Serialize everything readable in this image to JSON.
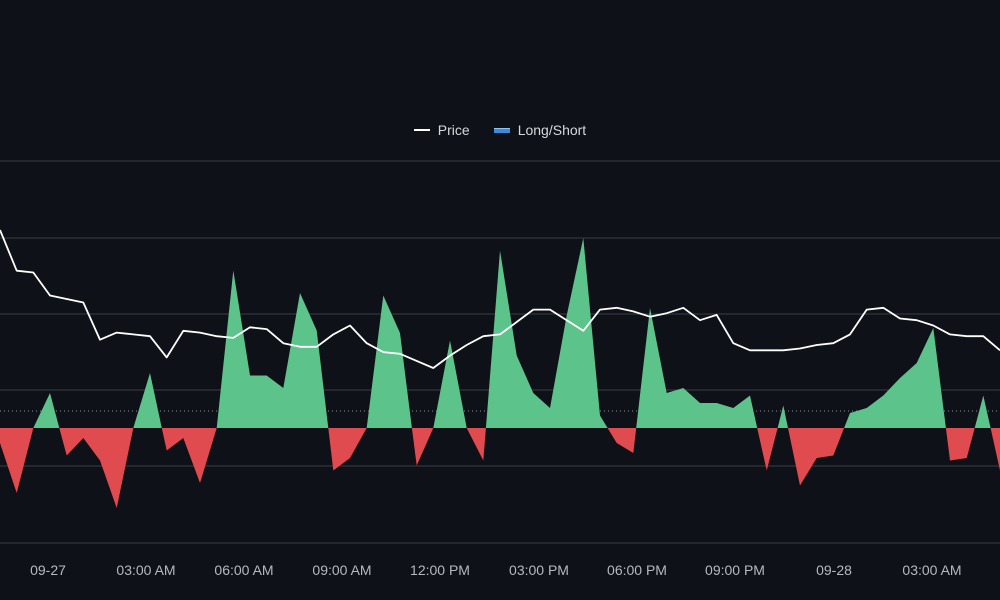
{
  "legend": {
    "price_label": "Price",
    "longshort_label": "Long/Short"
  },
  "colors": {
    "background": "#0e1117",
    "price_line": "#ffffff",
    "positive_area": "#5cc38a",
    "negative_area": "#e04b4f",
    "grid": "#3a3e46",
    "legend_bar": "#3d8bd9"
  },
  "chart_data": {
    "type": "area",
    "title": "",
    "xlabel": "",
    "ylabel": "",
    "grid": true,
    "legend_position": "top-center",
    "x_ticks": [
      "09-27",
      "03:00 AM",
      "06:00 AM",
      "09:00 AM",
      "12:00 PM",
      "03:00 PM",
      "06:00 PM",
      "09:00 PM",
      "09-28",
      "03:00 AM"
    ],
    "series": [
      {
        "name": "Price",
        "kind": "line",
        "values": [
          99,
          76,
          75,
          62,
          60,
          58,
          37,
          41,
          40,
          39,
          27,
          42,
          41,
          39,
          38,
          44,
          43,
          35,
          33,
          33,
          40,
          45,
          35,
          30,
          29,
          25,
          21,
          28,
          34,
          39,
          40,
          47,
          54,
          54,
          48,
          42,
          54,
          55,
          53,
          50,
          52,
          55,
          48,
          51,
          35,
          31,
          31,
          31,
          32,
          34,
          35,
          40,
          54,
          55,
          49,
          48,
          45,
          40,
          39,
          39,
          31
        ]
      },
      {
        "name": "Long/Short",
        "kind": "area",
        "values": [
          -0.6,
          -2.6,
          0,
          1.4,
          -1.1,
          -0.4,
          -1.3,
          -3.2,
          0,
          2.2,
          -0.9,
          -0.4,
          -2.2,
          0,
          6.3,
          2.1,
          2.1,
          1.6,
          5.4,
          3.9,
          -1.7,
          -1.2,
          0,
          5.3,
          3.8,
          -1.5,
          0,
          3.5,
          0,
          -1.3,
          7.1,
          2.9,
          1.4,
          0.8,
          4.5,
          7.6,
          0.5,
          -0.6,
          -1.0,
          4.8,
          1.4,
          1.6,
          1.0,
          1.0,
          0.8,
          1.3,
          -1.7,
          0.9,
          -2.3,
          -1.2,
          -1.1,
          0.6,
          0.8,
          1.3,
          2.0,
          2.6,
          4.0,
          -1.3,
          -1.2,
          1.3,
          -1.7
        ]
      }
    ]
  }
}
